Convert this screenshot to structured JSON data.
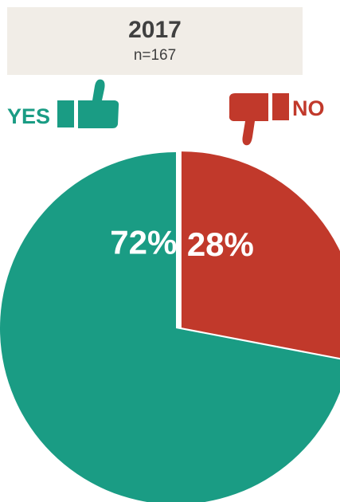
{
  "header": {
    "year": "2017",
    "n_label": "n=167"
  },
  "legend": {
    "yes_label": "YES",
    "no_label": "NO",
    "yes_icon": "thumbs-up-icon",
    "no_icon": "thumbs-down-icon"
  },
  "colors": {
    "yes": "#1a9c84",
    "no": "#c1392b",
    "header_bg": "#f1ede7",
    "header_text": "#404040"
  },
  "chart_data": {
    "type": "pie",
    "title": "2017",
    "subtitle": "n=167",
    "start": "12 o'clock",
    "direction": "clockwise",
    "slices": [
      {
        "label": "NO",
        "value": 28,
        "display": "28%",
        "color": "#c1392b",
        "exploded": true
      },
      {
        "label": "YES",
        "value": 72,
        "display": "72%",
        "color": "#1a9c84",
        "exploded": false
      }
    ]
  }
}
